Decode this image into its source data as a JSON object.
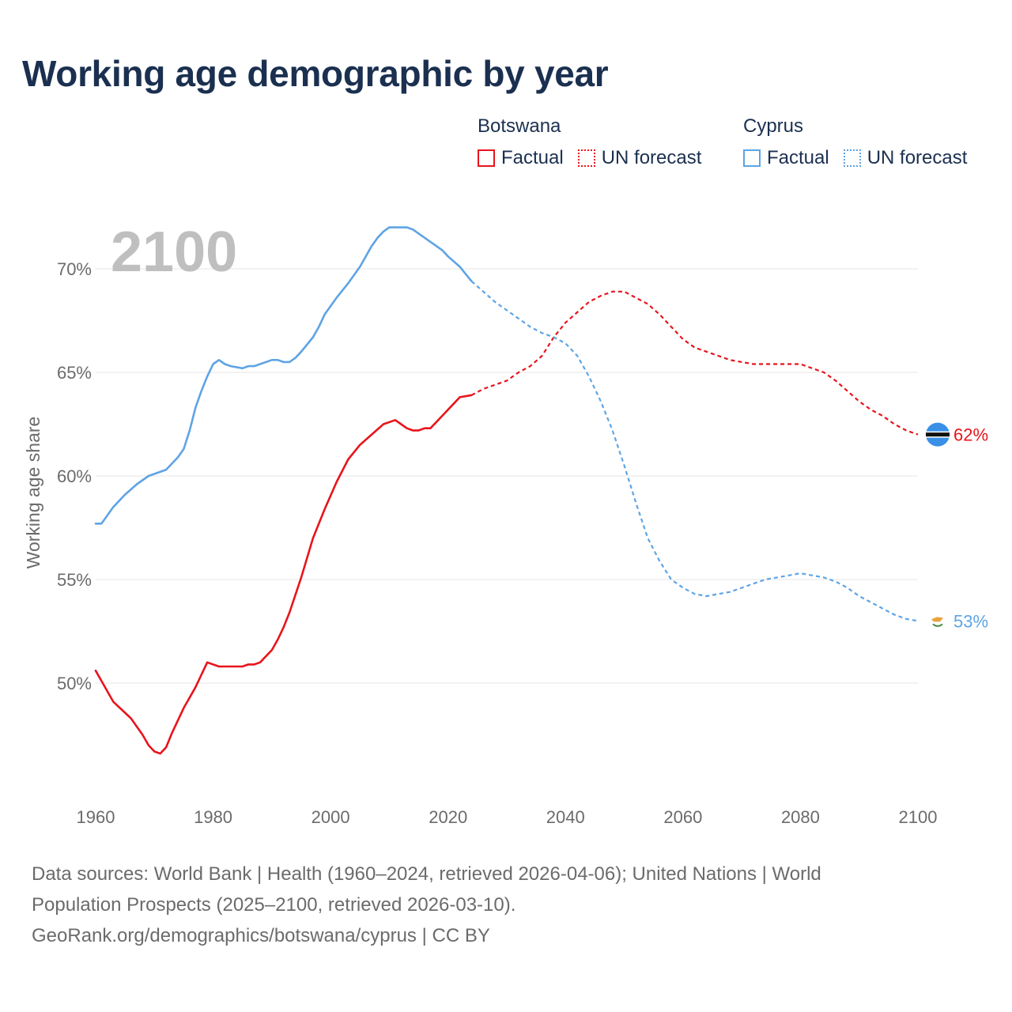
{
  "title": "Working age demographic by year",
  "legend": {
    "botswana": {
      "name": "Botswana",
      "factual": "Factual",
      "forecast": "UN forecast"
    },
    "cyprus": {
      "name": "Cyprus",
      "factual": "Factual",
      "forecast": "UN forecast"
    }
  },
  "sources": {
    "line1": "Data sources: World Bank | Health (1960–2024, retrieved 2026-04-06); United Nations | World",
    "line2": "Population Prospects (2025–2100, retrieved 2026-03-10).",
    "line3": "GeoRank.org/demographics/botswana/cyprus | CC BY"
  },
  "colors": {
    "botswana": "#e8141c",
    "cyprus": "#5ea4e4",
    "grid": "#e6e6e6",
    "year": "#bfbfbf"
  },
  "chart_data": {
    "type": "line",
    "title": "Working age demographic by year",
    "current_year_label": "2100",
    "xlabel": "",
    "ylabel": "Working age share",
    "xlim": [
      1960,
      2100
    ],
    "ylim": [
      45.5,
      72.5
    ],
    "x_ticks": [
      1960,
      1980,
      2000,
      2020,
      2040,
      2060,
      2080,
      2100
    ],
    "x_tick_labels": [
      "1960",
      "1980",
      "2000",
      "2020",
      "2040",
      "2060",
      "2080",
      "2100"
    ],
    "y_ticks": [
      50,
      55,
      60,
      65,
      70
    ],
    "y_tick_labels": [
      "50%",
      "55%",
      "60%",
      "65%",
      "70%"
    ],
    "grid": "horizontal",
    "legend_position": "top-right",
    "forecast_from": 2024,
    "series": [
      {
        "name": "Botswana",
        "color": "#e8141c",
        "end_label": "62%",
        "end_marker": "botswana-flag",
        "x": [
          1960,
          1963,
          1966,
          1968,
          1969,
          1970,
          1971,
          1972,
          1973,
          1975,
          1977,
          1979,
          1981,
          1983,
          1985,
          1986,
          1987,
          1988,
          1990,
          1991,
          1992,
          1993,
          1995,
          1997,
          1999,
          2001,
          2003,
          2005,
          2007,
          2009,
          2011,
          2012,
          2013,
          2014,
          2015,
          2016,
          2017,
          2019,
          2021,
          2022,
          2024,
          2026,
          2027,
          2028,
          2030,
          2032,
          2034,
          2036,
          2038,
          2040,
          2042,
          2044,
          2046,
          2048,
          2050,
          2052,
          2054,
          2056,
          2058,
          2060,
          2062,
          2064,
          2066,
          2068,
          2070,
          2072,
          2074,
          2076,
          2078,
          2080,
          2082,
          2084,
          2086,
          2088,
          2090,
          2092,
          2094,
          2096,
          2098,
          2100
        ],
        "values": [
          50.6,
          49.1,
          48.3,
          47.5,
          47.0,
          46.7,
          46.6,
          46.9,
          47.6,
          48.8,
          49.8,
          51.0,
          50.8,
          50.8,
          50.8,
          50.9,
          50.9,
          51.0,
          51.6,
          52.1,
          52.7,
          53.4,
          55.1,
          57.0,
          58.4,
          59.7,
          60.8,
          61.5,
          62.0,
          62.5,
          62.7,
          62.5,
          62.3,
          62.2,
          62.2,
          62.3,
          62.3,
          62.9,
          63.5,
          63.8,
          63.9,
          64.2,
          64.3,
          64.4,
          64.6,
          65.0,
          65.3,
          65.8,
          66.7,
          67.4,
          67.9,
          68.4,
          68.7,
          68.9,
          68.9,
          68.6,
          68.3,
          67.8,
          67.2,
          66.6,
          66.2,
          66.0,
          65.8,
          65.6,
          65.5,
          65.4,
          65.4,
          65.4,
          65.4,
          65.4,
          65.2,
          65.0,
          64.6,
          64.1,
          63.6,
          63.2,
          62.9,
          62.5,
          62.2,
          62.0
        ]
      },
      {
        "name": "Cyprus",
        "color": "#5ea4e4",
        "end_label": "53%",
        "end_marker": "cyprus-flag",
        "x": [
          1960,
          1961,
          1963,
          1965,
          1967,
          1969,
          1970,
          1972,
          1974,
          1975,
          1976,
          1977,
          1978,
          1979,
          1980,
          1981,
          1982,
          1983,
          1985,
          1986,
          1987,
          1988,
          1990,
          1991,
          1992,
          1993,
          1994,
          1995,
          1997,
          1998,
          1999,
          2000,
          2001,
          2003,
          2005,
          2007,
          2008,
          2009,
          2010,
          2011,
          2012,
          2013,
          2014,
          2016,
          2018,
          2019,
          2020,
          2022,
          2024,
          2026,
          2028,
          2030,
          2032,
          2034,
          2036,
          2038,
          2040,
          2042,
          2044,
          2046,
          2048,
          2050,
          2052,
          2054,
          2056,
          2058,
          2060,
          2062,
          2064,
          2066,
          2068,
          2070,
          2072,
          2074,
          2076,
          2078,
          2080,
          2082,
          2084,
          2086,
          2088,
          2090,
          2092,
          2094,
          2096,
          2098,
          2100
        ],
        "values": [
          57.7,
          57.7,
          58.5,
          59.1,
          59.6,
          60.0,
          60.1,
          60.3,
          60.9,
          61.3,
          62.2,
          63.3,
          64.1,
          64.8,
          65.4,
          65.6,
          65.4,
          65.3,
          65.2,
          65.3,
          65.3,
          65.4,
          65.6,
          65.6,
          65.5,
          65.5,
          65.7,
          66.0,
          66.7,
          67.2,
          67.8,
          68.2,
          68.6,
          69.3,
          70.1,
          71.1,
          71.5,
          71.8,
          72.0,
          72.0,
          72.0,
          72.0,
          71.9,
          71.5,
          71.1,
          70.9,
          70.6,
          70.1,
          69.4,
          68.9,
          68.4,
          68.0,
          67.6,
          67.2,
          66.9,
          66.7,
          66.4,
          65.8,
          64.8,
          63.6,
          62.2,
          60.5,
          58.7,
          57.0,
          55.9,
          55.0,
          54.6,
          54.3,
          54.2,
          54.3,
          54.4,
          54.6,
          54.8,
          55.0,
          55.1,
          55.2,
          55.3,
          55.2,
          55.1,
          54.9,
          54.6,
          54.2,
          53.9,
          53.6,
          53.3,
          53.1,
          53.0
        ]
      }
    ]
  }
}
